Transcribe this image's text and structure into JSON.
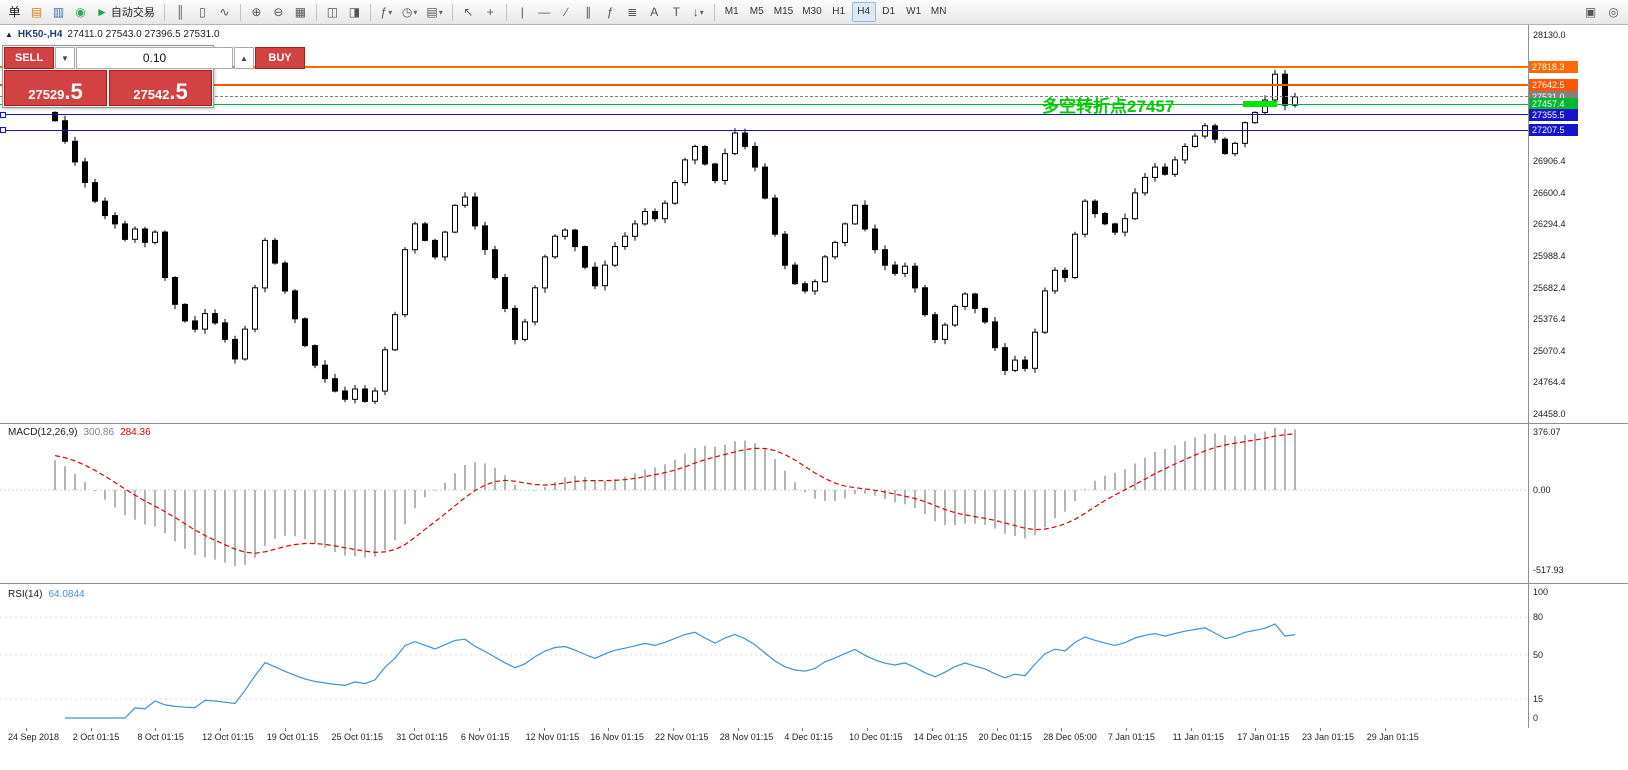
{
  "toolbar": {
    "items": [
      {
        "name": "new-order-button",
        "glyph": "单",
        "color": "#1a1a1a"
      },
      {
        "name": "chart-window-icon",
        "glyph": "▤",
        "color": "#c8862a"
      },
      {
        "name": "profiles-icon",
        "glyph": "▥",
        "color": "#3c6eb4"
      },
      {
        "name": "market-watch-icon",
        "glyph": "◉",
        "color": "#3fa45b"
      },
      {
        "name": "autotrading-button",
        "glyph": "►",
        "color": "#2e9e46",
        "label": "自动交易"
      },
      {
        "sep": true
      },
      {
        "name": "bars-chart-button",
        "glyph": "║"
      },
      {
        "name": "candles-chart-button",
        "glyph": "▯"
      },
      {
        "name": "line-chart-button",
        "glyph": "∿"
      },
      {
        "sep": true
      },
      {
        "name": "zoom-in-button",
        "glyph": "⊕"
      },
      {
        "name": "zoom-out-button",
        "glyph": "⊖"
      },
      {
        "name": "tile-windows-button",
        "glyph": "▦"
      },
      {
        "sep": true
      },
      {
        "name": "auto-scroll-button",
        "glyph": "◫"
      },
      {
        "name": "chart-shift-button",
        "glyph": "◨"
      },
      {
        "sep": true
      },
      {
        "name": "indicators-button",
        "glyph": "ƒ",
        "caret": true
      },
      {
        "name": "periods-button",
        "glyph": "◷",
        "caret": true
      },
      {
        "name": "templates-button",
        "glyph": "▤",
        "caret": true
      },
      {
        "sep": true
      },
      {
        "name": "cursor-button",
        "glyph": "↖"
      },
      {
        "name": "crosshair-button",
        "glyph": "+"
      },
      {
        "sep": true
      },
      {
        "name": "vertical-line-button",
        "glyph": "|"
      },
      {
        "name": "horizontal-line-button",
        "glyph": "—"
      },
      {
        "name": "trendline-button",
        "glyph": "∕"
      },
      {
        "name": "channel-button",
        "glyph": "∥"
      },
      {
        "name": "fibonacci-button",
        "glyph": "ƒ"
      },
      {
        "name": "shapes-button",
        "glyph": "≣"
      },
      {
        "name": "text-button",
        "glyph": "A"
      },
      {
        "name": "label-button",
        "glyph": "T"
      },
      {
        "name": "arrows-button",
        "glyph": "↓",
        "caret": true
      },
      {
        "sep": true
      },
      {
        "name": "timeframe-m1-button",
        "glyph": "M1",
        "tf": true
      },
      {
        "name": "timeframe-m5-button",
        "glyph": "M5",
        "tf": true
      },
      {
        "name": "timeframe-m15-button",
        "glyph": "M15",
        "tf": true
      },
      {
        "name": "timeframe-m30-button",
        "glyph": "M30",
        "tf": true
      },
      {
        "name": "timeframe-h1-button",
        "glyph": "H1",
        "tf": true
      },
      {
        "name": "timeframe-h4-button",
        "glyph": "H4",
        "tf": true,
        "active": true
      },
      {
        "name": "timeframe-d1-button",
        "glyph": "D1",
        "tf": true
      },
      {
        "name": "timeframe-w1-button",
        "glyph": "W1",
        "tf": true
      },
      {
        "name": "timeframe-mn-button",
        "glyph": "MN",
        "tf": true
      }
    ],
    "right_items": [
      {
        "name": "notifications-icon",
        "glyph": "▣"
      },
      {
        "name": "search-icon",
        "glyph": "◎"
      }
    ]
  },
  "chart": {
    "toggle_glyph": "▲",
    "symbol_title": "HK50-,H4",
    "ohlc_text": "27411.0 27543.0 27396.5 27531.0",
    "annotation": {
      "text": "多空转折点27457",
      "color": "#00cc00"
    },
    "highlight_bar": {
      "color": "#00e400",
      "price": 27457.4
    },
    "levels": [
      {
        "label": "27818.3",
        "price": 27818.3,
        "color": "#ff6a00",
        "thickness": 2,
        "style": "solid"
      },
      {
        "label": "27642.5",
        "price": 27642.5,
        "color": "#ff5500",
        "thickness": 2,
        "style": "solid"
      },
      {
        "label": "27531.0",
        "price": 27531.0,
        "color": "#808080",
        "thickness": 1,
        "style": "dashed"
      },
      {
        "label": "27457.4",
        "price": 27457.4,
        "color": "#00b82e",
        "thickness": 1,
        "style": "solid"
      },
      {
        "label": "27355.5",
        "price": 27355.5,
        "color": "#1414cc",
        "thickness": 1,
        "style": "solid",
        "anchor": true
      },
      {
        "label": "27207.5",
        "price": 27207.5,
        "color": "#1414cc",
        "thickness": 1,
        "style": "solid",
        "anchor": true
      }
    ],
    "axis_labels": [
      {
        "label": "28130.0",
        "price": 28130.0
      },
      {
        "label": "26906.4",
        "price": 26906.4
      },
      {
        "label": "26600.4",
        "price": 26600.4
      },
      {
        "label": "26294.4",
        "price": 26294.4
      },
      {
        "label": "25988.4",
        "price": 25988.4
      },
      {
        "label": "25682.4",
        "price": 25682.4
      },
      {
        "label": "25376.4",
        "price": 25376.4
      },
      {
        "label": "25070.4",
        "price": 25070.4
      },
      {
        "label": "24764.4",
        "price": 24764.4
      },
      {
        "label": "24458.0",
        "price": 24458.0
      }
    ]
  },
  "trade_panel": {
    "sell_label": "SELL",
    "buy_label": "BUY",
    "volume": "0.10",
    "down_glyph": "▼",
    "up_glyph": "▲",
    "sell_price_main": "27529",
    "sell_price_frac": ".5",
    "buy_price_main": "27542",
    "buy_price_frac": ".5"
  },
  "macd": {
    "title": "MACD(12,26,9)",
    "value_main": "300.86",
    "value_signal": "284.36",
    "axis": [
      {
        "label": "376.07",
        "v": 376.07
      },
      {
        "label": "0.00",
        "v": 0
      },
      {
        "label": "-517.93",
        "v": -517.93
      }
    ]
  },
  "rsi": {
    "title": "RSI(14)",
    "value": "64.0844",
    "axis": [
      {
        "label": "100",
        "v": 100
      },
      {
        "label": "80",
        "v": 80
      },
      {
        "label": "50",
        "v": 50
      },
      {
        "label": "15",
        "v": 15
      },
      {
        "label": "0",
        "v": 0
      }
    ]
  },
  "time_axis": {
    "labels": [
      "24 Sep 2018",
      "2 Oct 01:15",
      "8 Oct 01:15",
      "12 Oct 01:15",
      "19 Oct 01:15",
      "25 Oct 01:15",
      "31 Oct 01:15",
      "6 Nov 01:15",
      "12 Nov 01:15",
      "16 Nov 01:15",
      "22 Nov 01:15",
      "28 Nov 01:15",
      "4 Dec 01:15",
      "10 Dec 01:15",
      "14 Dec 01:15",
      "20 Dec 01:15",
      "28 Dec 05:00",
      "7 Jan 01:15",
      "11 Jan 01:15",
      "17 Jan 01:15",
      "23 Jan 01:15",
      "29 Jan 01:15"
    ]
  },
  "chart_data": {
    "type": "candlestick",
    "symbol": "HK50-",
    "timeframe": "H4",
    "last_ohlc": {
      "open": 27411.0,
      "high": 27543.0,
      "low": 27396.5,
      "close": 27531.0
    },
    "bid": "27529.5",
    "ask": "27542.5",
    "price_axis_range": [
      24458.0,
      28130.0
    ],
    "first_open": 27380,
    "closes": [
      27300,
      27100,
      26900,
      26700,
      26520,
      26380,
      26300,
      26150,
      26250,
      26120,
      26220,
      25780,
      25520,
      25360,
      25280,
      25430,
      25340,
      25180,
      24990,
      25280,
      25680,
      26140,
      25920,
      25650,
      25380,
      25120,
      24930,
      24800,
      24680,
      24600,
      24700,
      24580,
      24680,
      25080,
      25420,
      26050,
      26300,
      26140,
      25980,
      26220,
      26480,
      26560,
      26280,
      26050,
      25780,
      25480,
      25180,
      25350,
      25680,
      25980,
      26180,
      26240,
      26080,
      25880,
      25700,
      25900,
      26080,
      26180,
      26300,
      26420,
      26350,
      26500,
      26700,
      26920,
      27050,
      26880,
      26720,
      26980,
      27180,
      27050,
      26850,
      26550,
      26200,
      25900,
      25720,
      25650,
      25740,
      25980,
      26120,
      26300,
      26480,
      26250,
      26050,
      25900,
      25820,
      25890,
      25680,
      25420,
      25180,
      25320,
      25500,
      25620,
      25480,
      25350,
      25100,
      24880,
      24980,
      24900,
      25250,
      25650,
      25850,
      25780,
      26200,
      26520,
      26400,
      26300,
      26220,
      26350,
      26600,
      26750,
      26850,
      26780,
      26920,
      27050,
      27150,
      27250,
      27120,
      26980,
      27080,
      27280,
      27380,
      27500,
      27750,
      27450,
      27531
    ],
    "indicators": [
      {
        "name": "MACD",
        "params": [
          12,
          26,
          9
        ],
        "values": [
          300.86,
          284.36
        ],
        "range": [
          -517.93,
          376.07
        ]
      },
      {
        "name": "RSI",
        "params": [
          14
        ],
        "value": 64.0844,
        "levels": [
          80,
          50,
          15
        ]
      }
    ]
  }
}
